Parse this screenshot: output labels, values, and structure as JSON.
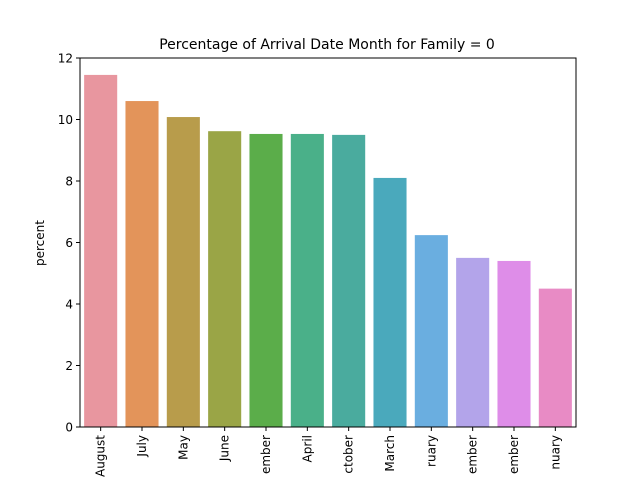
{
  "chart_data": {
    "type": "bar",
    "title": "Percentage of Arrival Date Month for Family = 0",
    "xlabel": "",
    "ylabel": "percent",
    "ylim": [
      0,
      12
    ],
    "yticks": [
      0,
      2,
      4,
      6,
      8,
      10,
      12
    ],
    "grid": false,
    "categories": [
      "August",
      "July",
      "May",
      "June",
      "September",
      "April",
      "October",
      "March",
      "February",
      "November",
      "December",
      "January"
    ],
    "tick_labels_visible": [
      "August",
      "July",
      "May",
      "June",
      "ember",
      "April",
      "ctober",
      "March",
      "ruary",
      "ember",
      "ember",
      "nuary"
    ],
    "values": [
      11.45,
      10.6,
      10.08,
      9.62,
      9.53,
      9.53,
      9.5,
      8.1,
      6.24,
      5.5,
      5.4,
      4.5
    ],
    "colors": [
      "#e8969f",
      "#e3945a",
      "#b89c4b",
      "#9aa546",
      "#5bad4a",
      "#4ab089",
      "#4aab9e",
      "#4aa9bc",
      "#6aaee0",
      "#b3a4ea",
      "#de8de8",
      "#e88bc5"
    ]
  }
}
